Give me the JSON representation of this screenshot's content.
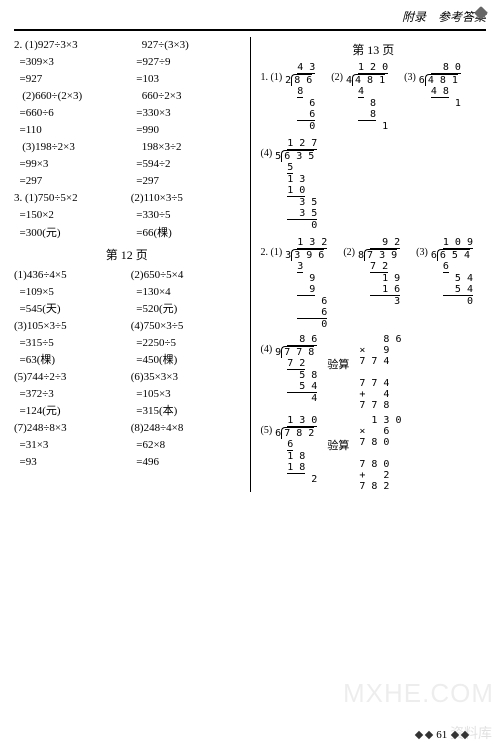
{
  "header": {
    "title": "附录　参考答案"
  },
  "left": {
    "p2": {
      "g1": {
        "a_title": "2. (1)927÷3×3",
        "a_lines": [
          "  =309×3",
          "  =927"
        ],
        "b_title": "    927÷(3×3)",
        "b_lines": [
          "  =927÷9",
          "  =103"
        ]
      },
      "g2": {
        "a_title": "   (2)660÷(2×3)",
        "a_lines": [
          "  =660÷6",
          "  =110"
        ],
        "b_title": "    660÷2×3",
        "b_lines": [
          "  =330×3",
          "  =990"
        ]
      },
      "g3": {
        "a_title": "   (3)198÷2×3",
        "a_lines": [
          "  =99×3",
          "  =297"
        ],
        "b_title": "    198×3÷2",
        "b_lines": [
          "  =594÷2",
          "  =297"
        ]
      }
    },
    "p3": {
      "g1": {
        "a_title": "3. (1)750÷5×2",
        "a_lines": [
          "  =150×2",
          "  =300(元)"
        ],
        "b_title": "(2)110×3÷5",
        "b_lines": [
          "  =330÷5",
          "  =66(棵)"
        ]
      }
    },
    "page12_heading": "第 12 页",
    "page12": [
      {
        "a_title": "(1)436÷4×5",
        "a_lines": [
          "  =109×5",
          "  =545(天)"
        ],
        "b_title": "(2)650÷5×4",
        "b_lines": [
          "  =130×4",
          "  =520(元)"
        ]
      },
      {
        "a_title": "(3)105×3÷5",
        "a_lines": [
          "  =315÷5",
          "  =63(棵)"
        ],
        "b_title": "(4)750×3÷5",
        "b_lines": [
          "  =2250÷5",
          "  =450(棵)"
        ]
      },
      {
        "a_title": "(5)744÷2÷3",
        "a_lines": [
          "  =372÷3",
          "  =124(元)"
        ],
        "b_title": "(6)35×3×3",
        "b_lines": [
          "  =105×3",
          "  =315(本)"
        ]
      },
      {
        "a_title": "(7)248÷8×3",
        "a_lines": [
          "  =31×3",
          "  =93"
        ],
        "b_title": "(8)248÷4×8",
        "b_lines": [
          "  =62×8",
          "  =496"
        ]
      }
    ]
  },
  "right": {
    "page13_heading": "第 13 页",
    "q1": [
      {
        "idx": "1. (1)",
        "divisor": "2",
        "dividend": "8 6",
        "quotient": "4 3",
        "rows": [
          "8",
          "  6",
          "  6",
          "  0"
        ]
      },
      {
        "idx": "(2)",
        "divisor": "4",
        "dividend": "4 8 1",
        "quotient": "1 2 0",
        "rows": [
          "4",
          "  8",
          "  8",
          "    1"
        ]
      },
      {
        "idx": "(3)",
        "divisor": "6",
        "dividend": "4 8 1",
        "quotient": "  8 0",
        "rows": [
          "4 8",
          "    1"
        ]
      },
      {
        "idx": "(4)",
        "divisor": "5",
        "dividend": "6 3 5",
        "quotient": "1 2 7",
        "rows": [
          "5",
          "1 3",
          "1 0",
          "  3 5",
          "  3 5",
          "    0"
        ]
      }
    ],
    "q2": [
      {
        "idx": "2. (1)",
        "divisor": "3",
        "dividend": "3 9 6",
        "quotient": "1 3 2",
        "rows": [
          "3",
          "  9",
          "  9",
          "    6",
          "    6",
          "    0"
        ]
      },
      {
        "idx": "(2)",
        "divisor": "8",
        "dividend": "7 3 9",
        "quotient": "  9 2",
        "rows": [
          "7 2",
          "  1 9",
          "  1 6",
          "    3"
        ]
      },
      {
        "idx": "(3)",
        "divisor": "6",
        "dividend": "6 5 4",
        "quotient": "1 0 9",
        "rows": [
          "6",
          "  5 4",
          "  5 4",
          "    0"
        ]
      }
    ],
    "q2b": [
      {
        "idx": "(4)",
        "divisor": "9",
        "dividend": "7 7 8",
        "quotient": "  8 6",
        "rows": [
          "7 2",
          "  5 8",
          "  5 4",
          "    4"
        ],
        "check": {
          "label": "验算",
          "top": "  8 6",
          "mul": "×   9",
          "r1_u": "7 7 4",
          "r2": "+   4",
          "r3_u": "7 7 8"
        }
      },
      {
        "idx": "(5)",
        "divisor": "6",
        "dividend": "7 8 2",
        "quotient": "1 3 0",
        "rows": [
          "6",
          "1 8",
          "1 8",
          "    2"
        ],
        "check": {
          "label": "验算",
          "top": "1 3 0",
          "mul": "×   6",
          "r1_u": "7 8 0",
          "r2": "+   2",
          "r3_u": "7 8 2"
        }
      }
    ]
  },
  "pagenum": "61",
  "watermark1": "MXHE.COM",
  "watermark2": "资料库"
}
